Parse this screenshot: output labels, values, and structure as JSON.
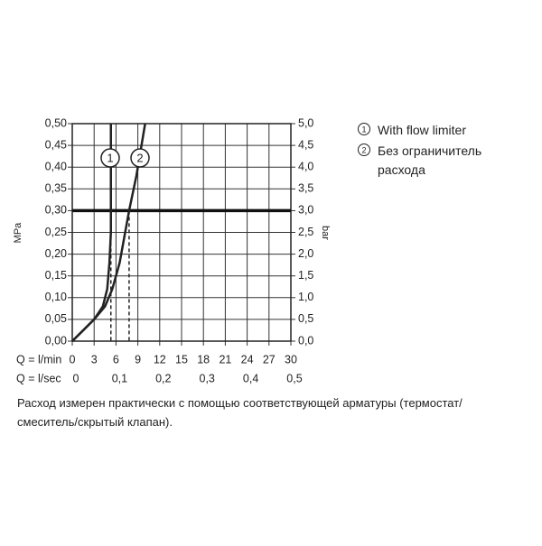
{
  "chart_data": {
    "type": "line",
    "y_label": "MPa",
    "y2_label": "bar",
    "x_label": "Q = l/min",
    "x2_label": "Q = l/sec",
    "xlim": [
      0,
      30
    ],
    "xticks": [
      0,
      3,
      6,
      9,
      12,
      15,
      18,
      21,
      24,
      27,
      30
    ],
    "x2lim": [
      0,
      0.5
    ],
    "x2ticks": [
      0,
      {
        "value": 0.1,
        "label": "0,1"
      },
      {
        "value": 0.2,
        "label": "0,2"
      },
      {
        "value": 0.3,
        "label": "0,3"
      },
      {
        "value": 0.4,
        "label": "0,4"
      },
      {
        "value": 0.5,
        "label": "0,5"
      }
    ],
    "ylim": [
      0,
      0.5
    ],
    "yticks": [
      {
        "value": 0,
        "label": "0,00"
      },
      {
        "value": 0.05,
        "label": "0,05"
      },
      {
        "value": 0.1,
        "label": "0,10"
      },
      {
        "value": 0.15,
        "label": "0,15"
      },
      {
        "value": 0.2,
        "label": "0,20"
      },
      {
        "value": 0.25,
        "label": "0,25"
      },
      {
        "value": 0.3,
        "label": "0,30"
      },
      {
        "value": 0.35,
        "label": "0,35"
      },
      {
        "value": 0.4,
        "label": "0,40"
      },
      {
        "value": 0.45,
        "label": "0,45"
      },
      {
        "value": 0.5,
        "label": "0,50"
      }
    ],
    "y2lim": [
      0,
      5
    ],
    "y2ticks": [
      {
        "value": 0,
        "label": "0,0"
      },
      {
        "value": 0.5,
        "label": "0,5"
      },
      {
        "value": 1,
        "label": "1,0"
      },
      {
        "value": 1.5,
        "label": "1,5"
      },
      {
        "value": 2,
        "label": "2,0"
      },
      {
        "value": 2.5,
        "label": "2,5"
      },
      {
        "value": 3,
        "label": "3,0"
      },
      {
        "value": 3.5,
        "label": "3,5"
      },
      {
        "value": 4,
        "label": "4,0"
      },
      {
        "value": 4.5,
        "label": "4,5"
      },
      {
        "value": 5,
        "label": "5,0"
      }
    ],
    "grid": true,
    "reference_y": 0.3,
    "series": [
      {
        "label": "1",
        "name": "With flow limiter",
        "color": "#222222",
        "crossing_x": 5.3,
        "x": [
          0,
          1.5,
          3,
          4.2,
          4.8,
          5.1,
          5.3,
          5.3
        ],
        "y": [
          0,
          0.025,
          0.05,
          0.08,
          0.12,
          0.18,
          0.25,
          0.5
        ]
      },
      {
        "label": "2",
        "name": "Без ограничитель расхода",
        "color": "#222222",
        "crossing_x": 7.8,
        "x": [
          0,
          1.5,
          3,
          4.5,
          5.5,
          6.5,
          7.8,
          8.8,
          10
        ],
        "y": [
          0,
          0.025,
          0.05,
          0.08,
          0.12,
          0.18,
          0.3,
          0.38,
          0.5
        ]
      }
    ],
    "footnote": [
      "Расход измерен практически с помощью соответствующей арматуры (термостат/",
      "смеситель/скрытый клапан)."
    ]
  }
}
